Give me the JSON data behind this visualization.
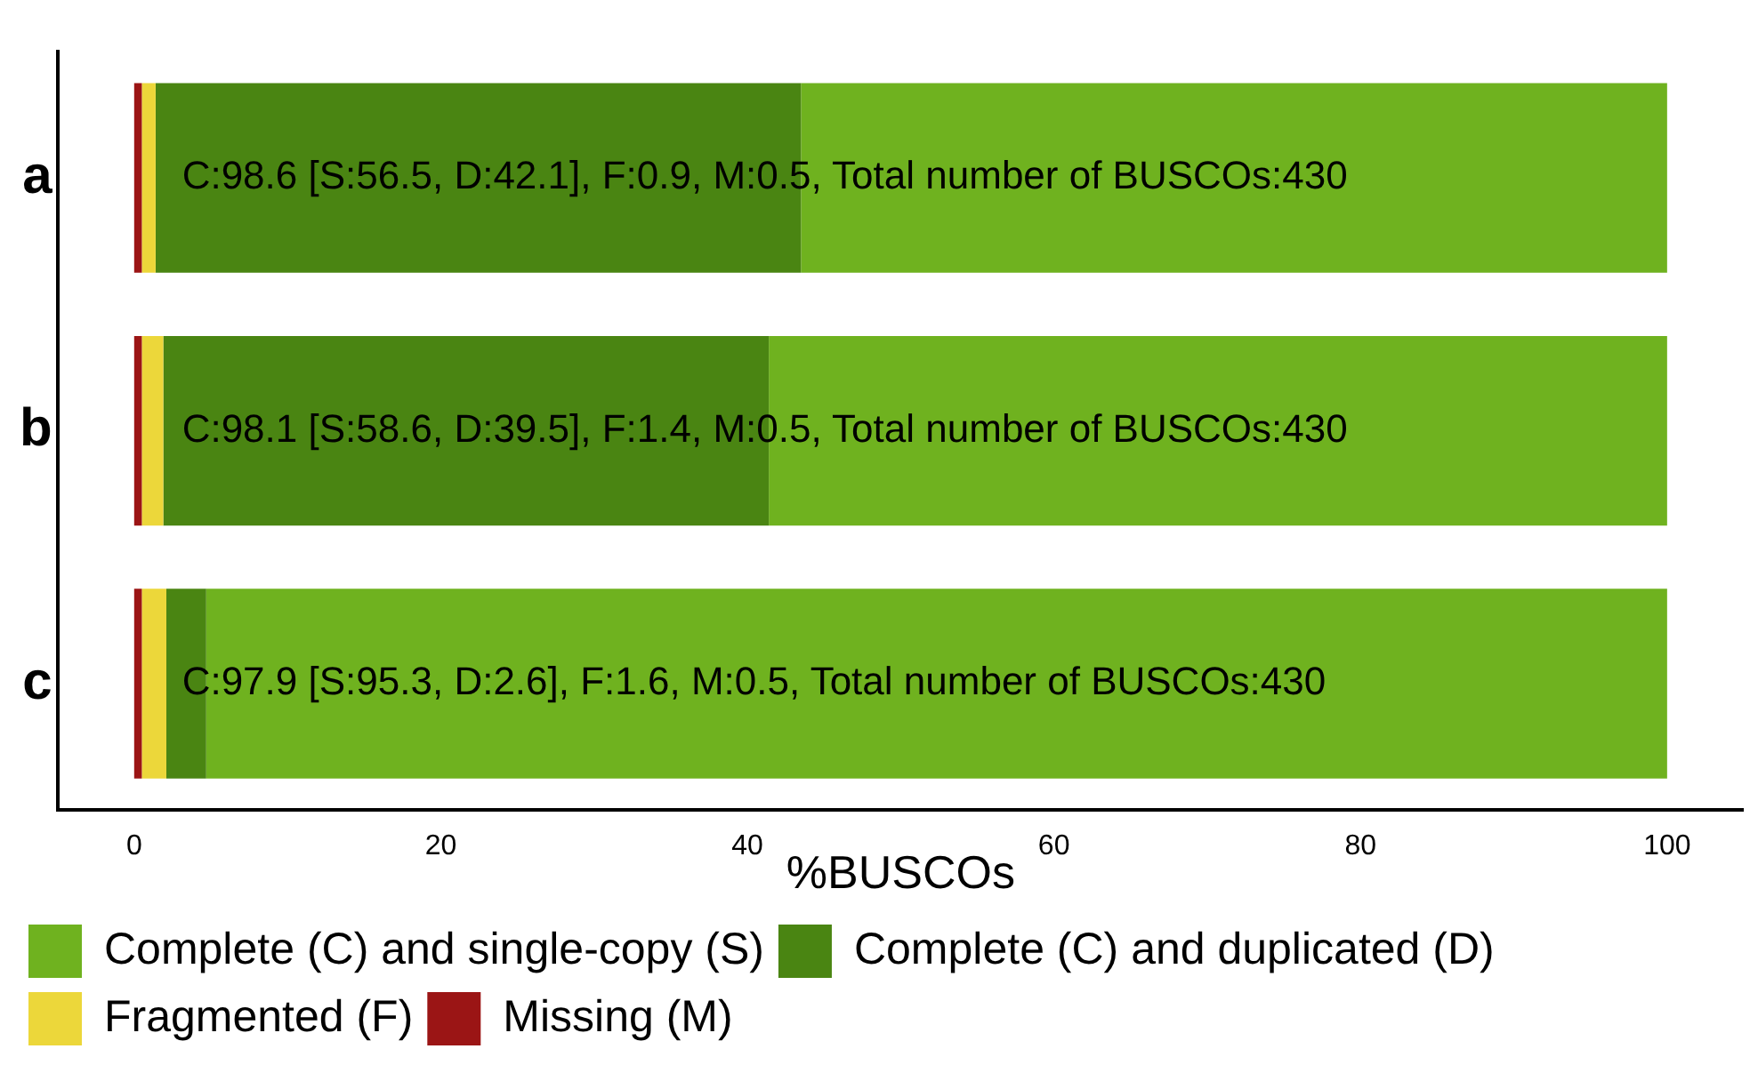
{
  "chart_data": {
    "type": "bar",
    "orientation": "horizontal",
    "stacked": true,
    "xlabel": "%BUSCOs",
    "categories": [
      "a",
      "b",
      "c"
    ],
    "series": [
      {
        "name": "Missing (M)",
        "color": "#9b1515",
        "values": [
          0.5,
          0.5,
          0.5
        ]
      },
      {
        "name": "Fragmented (F)",
        "color": "#ecd73a",
        "values": [
          0.9,
          1.4,
          1.6
        ]
      },
      {
        "name": "Complete (C) and duplicated (D)",
        "color": "#4a8512",
        "values": [
          42.1,
          39.5,
          2.6
        ]
      },
      {
        "name": "Complete (C) and single-copy (S)",
        "color": "#6fb21f",
        "values": [
          56.5,
          58.6,
          95.3
        ]
      }
    ],
    "xlim": [
      -5,
      105
    ],
    "xticks": [
      0,
      20,
      40,
      60,
      80,
      100
    ],
    "grid": false,
    "legend": "bottom",
    "annotations": [
      "C:98.6 [S:56.5, D:42.1], F:0.9, M:0.5, Total number of BUSCOs:430",
      "C:98.1 [S:58.6, D:39.5], F:1.4, M:0.5, Total number of BUSCOs:430",
      "C:97.9 [S:95.3, D:2.6], F:1.6, M:0.5, Total number of BUSCOs:430"
    ]
  }
}
